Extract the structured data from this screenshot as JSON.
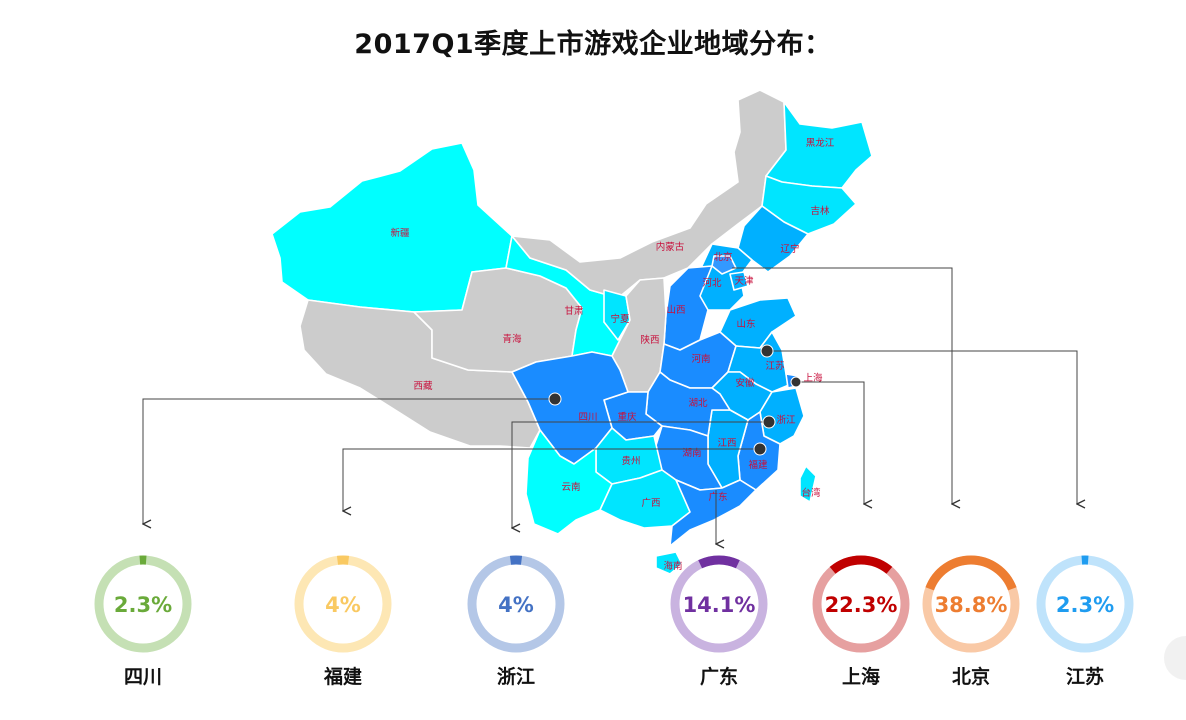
{
  "chart_data": {
    "type": "donut",
    "title": "2017Q1季度上市游戏企业地域分布：",
    "categories": [
      "四川",
      "福建",
      "浙江",
      "广东",
      "上海",
      "北京",
      "江苏"
    ],
    "values": [
      2.3,
      4,
      4,
      14.1,
      22.3,
      38.8,
      2.3
    ],
    "value_labels": [
      "2.3%",
      "4%",
      "4%",
      "14.1%",
      "22.3%",
      "38.8%",
      "2.3%"
    ],
    "colors": [
      "#6aaa3a",
      "#f9c962",
      "#4472c4",
      "#7030a0",
      "#c00000",
      "#ed7d31",
      "#1f9cf0"
    ],
    "track_colors": [
      "#c5e0b4",
      "#fde7b4",
      "#b4c7e7",
      "#c9b3e0",
      "#e6a0a0",
      "#f9c9a6",
      "#bfe3fb"
    ],
    "map_labels": {
      "heilongjiang": "黑龙江",
      "jilin": "吉林",
      "liaoning": "辽宁",
      "beijing": "北京",
      "tianjin": "天津",
      "hebei": "河北",
      "neimenggu": "内蒙古",
      "xinjiang": "新疆",
      "xizang": "西藏",
      "qinghai": "青海",
      "gansu": "甘肃",
      "ningxia": "宁夏",
      "shaanxi": "陕西",
      "shanxi": "山西",
      "henan": "河南",
      "shandong": "山东",
      "jiangsu": "江苏",
      "shanghai": "上海",
      "anhui": "安徽",
      "hubei": "湖北",
      "sichuan": "四川",
      "chongqing": "重庆",
      "zhejiang": "浙江",
      "jiangxi": "江西",
      "hunan": "湖南",
      "guizhou": "贵州",
      "yunnan": "云南",
      "guangxi": "广西",
      "guangdong": "广东",
      "fujian": "福建",
      "taiwan": "台湾",
      "hainan": "海南"
    }
  }
}
